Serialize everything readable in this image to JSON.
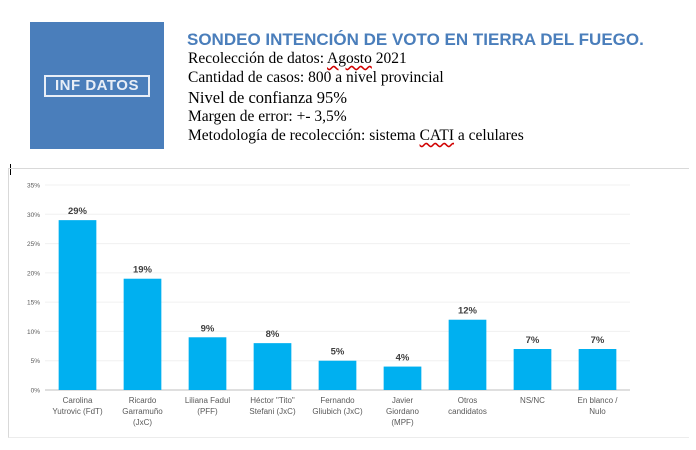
{
  "header": {
    "logo_text": "INF DATOS",
    "title": "SONDEO INTENCIÓN  DE VOTO EN TIERRA DEL FUEGO.",
    "lines": {
      "fecha_label": "Recolección de datos: ",
      "fecha_value": "Agosto",
      "fecha_year": " 2021",
      "casos": "Cantidad de casos: 800 a nivel provincial",
      "confianza": "Nivel de confianza 95%",
      "margen": "Margen de error: +- 3,5%",
      "metodologia_pre": "Metodología  de  recolección: sistema ",
      "metodologia_cati": "CATI",
      "metodologia_post": " a celulares"
    }
  },
  "colors": {
    "bar": "#00b0f0",
    "title": "#4a7ebb",
    "logo_bg": "#4a7ebb"
  },
  "chart_data": {
    "type": "bar",
    "title": "",
    "xlabel": "",
    "ylabel": "",
    "ylim": [
      0,
      35
    ],
    "yticks": [
      "0%",
      "5%",
      "10%",
      "15%",
      "20%",
      "25%",
      "30%",
      "35%"
    ],
    "categories": [
      [
        "Carolina",
        "Yutrovic (FdT)"
      ],
      [
        "Ricardo",
        "Garramuño",
        "(JxC)"
      ],
      [
        "Liliana Fadul",
        "(PFF)"
      ],
      [
        "Héctor \"Tito\"",
        "Stefani (JxC)"
      ],
      [
        "Fernando",
        "Gliubich (JxC)"
      ],
      [
        "Javier",
        "Giordano",
        "(MPF)"
      ],
      [
        "Otros",
        "candidatos"
      ],
      [
        "NS/NC"
      ],
      [
        "En blanco /",
        "Nulo"
      ]
    ],
    "values": [
      29,
      19,
      9,
      8,
      5,
      4,
      12,
      7,
      7
    ],
    "data_labels": [
      "29%",
      "19%",
      "9%",
      "8%",
      "5%",
      "4%",
      "12%",
      "7%",
      "7%"
    ]
  }
}
